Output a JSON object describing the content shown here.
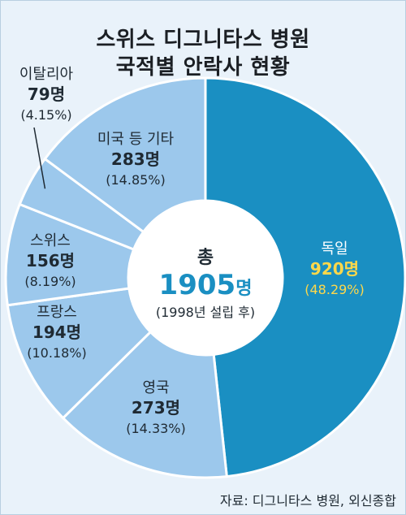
{
  "title": {
    "line1": "스위스 디그니타스 병원",
    "line2": "국적별 안락사 현황"
  },
  "center": {
    "label": "총",
    "total_number": "1905",
    "total_unit": "명",
    "note": "(1998년 설립 후)"
  },
  "source": "자료: 디그니타스 병원, 외신종합",
  "colors": {
    "primary": "#1a8fc2",
    "light": "#9cc8ec",
    "background": "#e9f2fa",
    "highlight_number": "#ffd84a",
    "center_number": "#1a8fc2"
  },
  "chart_data": {
    "type": "pie",
    "title": "스위스 디그니타스 병원 국적별 안락사 현황",
    "total": 1905,
    "slices": [
      {
        "name": "독일",
        "value": 920,
        "value_label": "920명",
        "pct_label": "(48.29%)"
      },
      {
        "name": "영국",
        "value": 273,
        "value_label": "273명",
        "pct_label": "(14.33%)"
      },
      {
        "name": "프랑스",
        "value": 194,
        "value_label": "194명",
        "pct_label": "(10.18%)"
      },
      {
        "name": "스위스",
        "value": 156,
        "value_label": "156명",
        "pct_label": "(8.19%)"
      },
      {
        "name": "이탈리아",
        "value": 79,
        "value_label": "79명",
        "pct_label": "(4.15%)"
      },
      {
        "name": "미국 등 기타",
        "value": 283,
        "value_label": "283명",
        "pct_label": "(14.85%)"
      }
    ]
  }
}
